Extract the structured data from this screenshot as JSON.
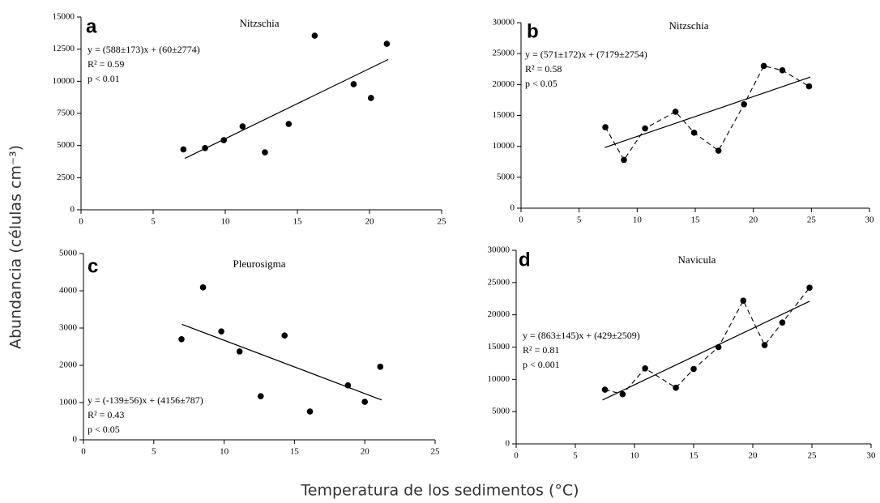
{
  "xlabel": "Temperatura de los sedimentos (°C)",
  "ylabel": "Abundancia (células cm⁻³)",
  "chart_data": [
    {
      "type": "scatter",
      "panel": "a",
      "title": "Nitzschia",
      "annotations": [
        "y = (588±173)x + (60±2774)",
        "R² = 0.59",
        "p < 0.01"
      ],
      "x": [
        7.1,
        8.6,
        9.9,
        11.2,
        12.75,
        14.4,
        16.2,
        18.9,
        20.1,
        21.2
      ],
      "values": [
        4700,
        4800,
        5420,
        6490,
        4470,
        6680,
        13550,
        9770,
        8700,
        12920
      ],
      "trend": {
        "x": [
          7.2,
          21.3
        ],
        "values": [
          4000,
          11700
        ]
      },
      "connect_points": false,
      "color": "#000000",
      "xlim": [
        0,
        25
      ],
      "xticks": [
        0,
        5,
        10,
        15,
        20,
        25
      ],
      "ylim": [
        0,
        15000
      ],
      "yticks": [
        0,
        2500,
        5000,
        7500,
        10000,
        12500,
        15000
      ]
    },
    {
      "type": "scatter",
      "panel": "b",
      "title": "Nitzschia",
      "annotations": [
        "y = (571±172)x + (7179±2754)",
        "R² = 0.58",
        "p < 0.05"
      ],
      "x": [
        7.26,
        8.86,
        10.68,
        13.3,
        14.9,
        17.0,
        19.2,
        20.9,
        22.5,
        24.8
      ],
      "values": [
        13100,
        7800,
        12900,
        15600,
        12200,
        9300,
        16800,
        23000,
        22300,
        19700
      ],
      "trend": {
        "x": [
          7.2,
          24.9
        ],
        "values": [
          9800,
          21200
        ]
      },
      "connect_points": true,
      "color": "#000000",
      "xlim": [
        0,
        30
      ],
      "xticks": [
        0,
        5,
        10,
        15,
        20,
        25,
        30
      ],
      "ylim": [
        0,
        30000
      ],
      "yticks": [
        0,
        5000,
        10000,
        15000,
        20000,
        25000,
        30000
      ]
    },
    {
      "type": "scatter",
      "panel": "c",
      "title": "Pleurosigma",
      "annotations": [
        "y = (-139±56)x + (4156±787)",
        "R² = 0.43",
        "p < 0.05"
      ],
      "x": [
        6.97,
        8.5,
        9.8,
        11.1,
        12.6,
        14.3,
        16.1,
        18.8,
        20.0,
        21.1
      ],
      "values": [
        2700,
        4090,
        2910,
        2370,
        1170,
        2800,
        760,
        1460,
        1020,
        1960
      ],
      "trend": {
        "x": [
          7.0,
          21.2
        ],
        "values": [
          3100,
          1070
        ]
      },
      "connect_points": false,
      "color": "#000000",
      "xlim": [
        0,
        25
      ],
      "xticks": [
        0,
        5,
        10,
        15,
        20,
        25
      ],
      "ylim": [
        0,
        5000
      ],
      "yticks": [
        0,
        1000,
        2000,
        3000,
        4000,
        5000
      ]
    },
    {
      "type": "scatter",
      "panel": "d",
      "title": "Navicula",
      "annotations": [
        "y = (863±145)x + (429±2509)",
        "R² = 0.81",
        "p < 0.001"
      ],
      "x": [
        7.5,
        9.0,
        10.9,
        13.5,
        15.0,
        17.1,
        19.2,
        21.0,
        22.5,
        24.8
      ],
      "values": [
        8400,
        7700,
        11700,
        8700,
        11600,
        15000,
        22200,
        15300,
        18800,
        24200
      ],
      "trend": {
        "x": [
          7.3,
          24.8
        ],
        "values": [
          6800,
          22100
        ]
      },
      "connect_points": true,
      "color": "#000000",
      "xlim": [
        0,
        30
      ],
      "xticks": [
        0,
        5,
        10,
        15,
        20,
        25,
        30
      ],
      "ylim": [
        0,
        30000
      ],
      "yticks": [
        0,
        5000,
        10000,
        15000,
        20000,
        25000,
        30000
      ]
    }
  ]
}
